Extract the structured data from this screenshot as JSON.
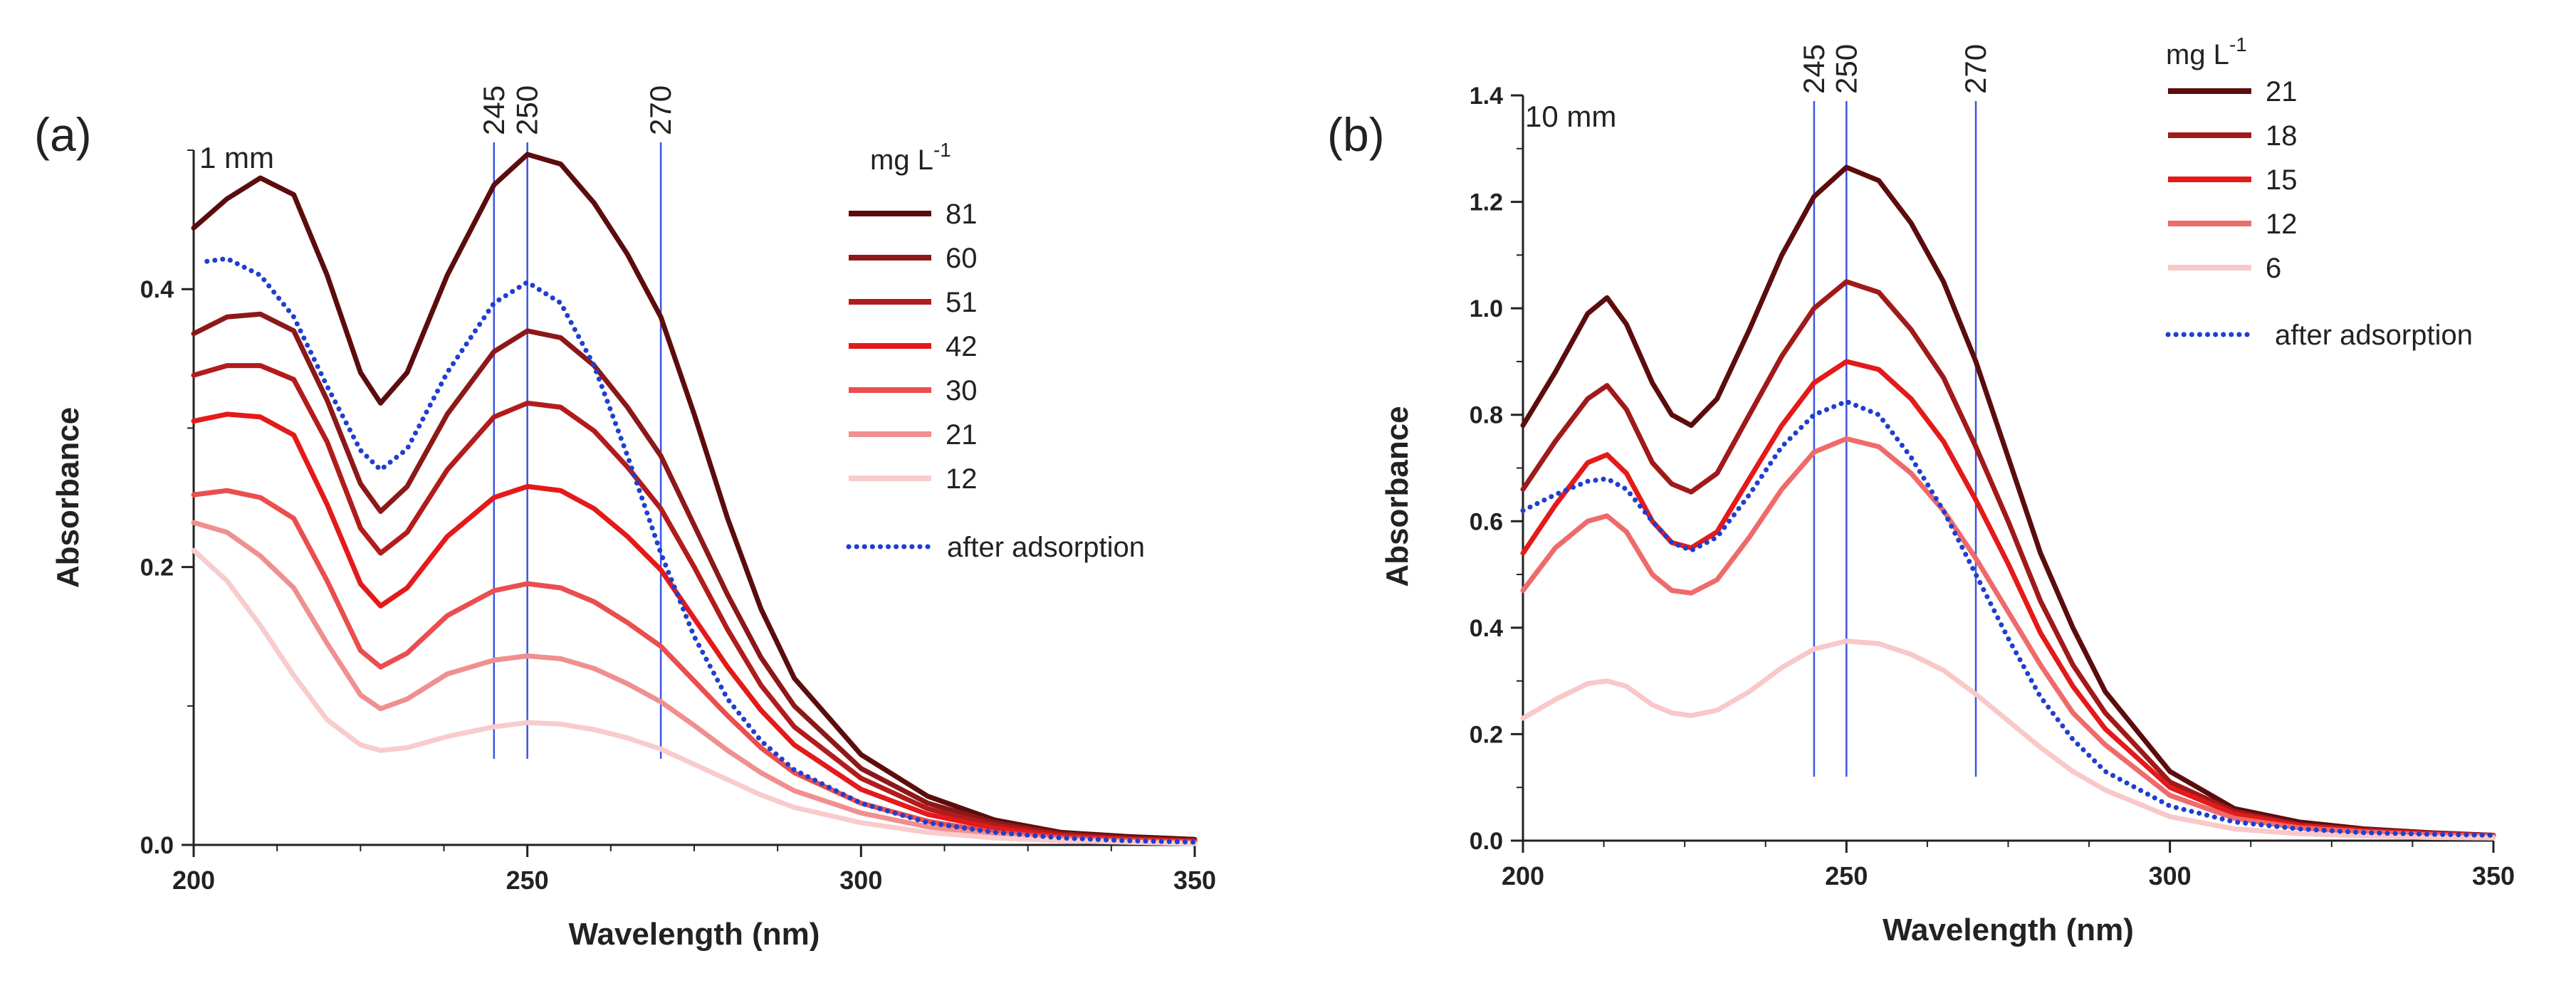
{
  "chart_data": [
    {
      "type": "line",
      "panel_label": "(a)",
      "path_note": "1 mm",
      "xlabel": "Wavelength (nm)",
      "ylabel": "Absorbance",
      "xlim": [
        200,
        350
      ],
      "ylim": [
        0,
        0.5
      ],
      "x_ticks": [
        200,
        250,
        300,
        350
      ],
      "y_ticks": [
        0.0,
        0.2,
        0.4
      ],
      "y_tick_labels": [
        "0.0",
        "0.2",
        "0.4"
      ],
      "x_minor_step": 12.5,
      "y_minor_step": 0.1,
      "ref_lines": [
        {
          "x": 245,
          "label": "245"
        },
        {
          "x": 250,
          "label": "250"
        },
        {
          "x": 270,
          "label": "270"
        }
      ],
      "ref_line_ymin": 0.062,
      "legend_title": "mg L",
      "legend_title_sup": "-1",
      "series": [
        {
          "name": "81",
          "color": "#5c0c0c",
          "style": "solid",
          "x": [
            200,
            205,
            210,
            215,
            220,
            225,
            228,
            232,
            238,
            245,
            250,
            255,
            260,
            265,
            270,
            275,
            280,
            285,
            290,
            300,
            310,
            320,
            330,
            340,
            350
          ],
          "y": [
            0.444,
            0.465,
            0.48,
            0.468,
            0.41,
            0.34,
            0.318,
            0.34,
            0.41,
            0.475,
            0.497,
            0.49,
            0.462,
            0.425,
            0.38,
            0.31,
            0.235,
            0.17,
            0.12,
            0.065,
            0.035,
            0.018,
            0.009,
            0.006,
            0.004
          ]
        },
        {
          "name": "60",
          "color": "#8c1818",
          "style": "solid",
          "x": [
            200,
            205,
            210,
            215,
            220,
            225,
            228,
            232,
            238,
            245,
            250,
            255,
            260,
            265,
            270,
            275,
            280,
            285,
            290,
            300,
            310,
            320,
            330,
            340,
            350
          ],
          "y": [
            0.368,
            0.38,
            0.382,
            0.37,
            0.32,
            0.26,
            0.24,
            0.258,
            0.31,
            0.355,
            0.37,
            0.365,
            0.345,
            0.315,
            0.28,
            0.23,
            0.18,
            0.135,
            0.1,
            0.055,
            0.03,
            0.016,
            0.008,
            0.005,
            0.003
          ]
        },
        {
          "name": "51",
          "color": "#b21c1c",
          "style": "solid",
          "x": [
            200,
            205,
            210,
            215,
            220,
            225,
            228,
            232,
            238,
            245,
            250,
            255,
            260,
            265,
            270,
            275,
            280,
            285,
            290,
            300,
            310,
            320,
            330,
            340,
            350
          ],
          "y": [
            0.338,
            0.345,
            0.345,
            0.335,
            0.29,
            0.228,
            0.21,
            0.225,
            0.27,
            0.308,
            0.318,
            0.315,
            0.298,
            0.272,
            0.242,
            0.2,
            0.155,
            0.115,
            0.085,
            0.048,
            0.026,
            0.014,
            0.007,
            0.004,
            0.003
          ]
        },
        {
          "name": "42",
          "color": "#e41a1a",
          "style": "solid",
          "x": [
            200,
            205,
            210,
            215,
            220,
            225,
            228,
            232,
            238,
            245,
            250,
            255,
            260,
            265,
            270,
            275,
            280,
            285,
            290,
            300,
            310,
            320,
            330,
            340,
            350
          ],
          "y": [
            0.305,
            0.31,
            0.308,
            0.295,
            0.245,
            0.188,
            0.172,
            0.185,
            0.222,
            0.25,
            0.258,
            0.255,
            0.242,
            0.222,
            0.198,
            0.163,
            0.128,
            0.097,
            0.072,
            0.04,
            0.022,
            0.012,
            0.006,
            0.004,
            0.002
          ]
        },
        {
          "name": "30",
          "color": "#ea4e4e",
          "style": "solid",
          "x": [
            200,
            205,
            210,
            215,
            220,
            225,
            228,
            232,
            238,
            245,
            250,
            255,
            260,
            265,
            270,
            275,
            280,
            285,
            290,
            300,
            310,
            320,
            330,
            340,
            350
          ],
          "y": [
            0.252,
            0.255,
            0.25,
            0.235,
            0.19,
            0.14,
            0.128,
            0.138,
            0.165,
            0.183,
            0.188,
            0.185,
            0.175,
            0.16,
            0.143,
            0.118,
            0.093,
            0.07,
            0.052,
            0.03,
            0.017,
            0.009,
            0.005,
            0.003,
            0.002
          ]
        },
        {
          "name": "21",
          "color": "#f08f8f",
          "style": "solid",
          "x": [
            200,
            205,
            210,
            215,
            220,
            225,
            228,
            232,
            238,
            245,
            250,
            255,
            260,
            265,
            270,
            275,
            280,
            285,
            290,
            300,
            310,
            320,
            330,
            340,
            350
          ],
          "y": [
            0.232,
            0.225,
            0.208,
            0.185,
            0.145,
            0.108,
            0.098,
            0.105,
            0.123,
            0.133,
            0.136,
            0.134,
            0.127,
            0.116,
            0.103,
            0.086,
            0.068,
            0.052,
            0.039,
            0.023,
            0.013,
            0.007,
            0.004,
            0.002,
            0.001
          ]
        },
        {
          "name": "12",
          "color": "#f8cccc",
          "style": "solid",
          "x": [
            200,
            205,
            210,
            215,
            220,
            225,
            228,
            232,
            238,
            245,
            250,
            255,
            260,
            265,
            270,
            275,
            280,
            285,
            290,
            300,
            310,
            320,
            330,
            340,
            350
          ],
          "y": [
            0.212,
            0.19,
            0.158,
            0.122,
            0.09,
            0.072,
            0.068,
            0.07,
            0.078,
            0.085,
            0.088,
            0.087,
            0.083,
            0.077,
            0.069,
            0.058,
            0.047,
            0.036,
            0.027,
            0.016,
            0.009,
            0.005,
            0.003,
            0.002,
            0.001
          ]
        },
        {
          "name": "after adsorption",
          "color": "#1f3fcf",
          "style": "dotted",
          "x": [
            202,
            205,
            210,
            215,
            220,
            225,
            228,
            232,
            238,
            245,
            250,
            255,
            260,
            265,
            270,
            275,
            280,
            285,
            290,
            300,
            310,
            320,
            330,
            340,
            350
          ],
          "y": [
            0.42,
            0.422,
            0.41,
            0.38,
            0.33,
            0.284,
            0.27,
            0.285,
            0.34,
            0.39,
            0.405,
            0.39,
            0.345,
            0.28,
            0.21,
            0.15,
            0.105,
            0.075,
            0.054,
            0.03,
            0.016,
            0.009,
            0.005,
            0.003,
            0.002
          ]
        }
      ]
    },
    {
      "type": "line",
      "panel_label": "(b)",
      "path_note": "10 mm",
      "xlabel": "Wavelength (nm)",
      "ylabel": "Absorbance",
      "xlim": [
        200,
        350
      ],
      "ylim": [
        0,
        1.4
      ],
      "x_ticks": [
        200,
        250,
        300,
        350
      ],
      "y_ticks": [
        0.0,
        0.2,
        0.4,
        0.6,
        0.8,
        1.0,
        1.2,
        1.4
      ],
      "y_tick_labels": [
        "0.0",
        "0.2",
        "0.4",
        "0.6",
        "0.8",
        "1.0",
        "1.2",
        "1.4"
      ],
      "x_minor_step": 12.5,
      "y_minor_step": 0.1,
      "ref_lines": [
        {
          "x": 245,
          "label": "245"
        },
        {
          "x": 250,
          "label": "250"
        },
        {
          "x": 270,
          "label": "270"
        }
      ],
      "ref_line_ymin": 0.12,
      "legend_title": "mg L",
      "legend_title_sup": "-1",
      "series": [
        {
          "name": "21",
          "color": "#5c0c0c",
          "style": "solid",
          "x": [
            200,
            205,
            210,
            213,
            216,
            220,
            223,
            226,
            230,
            235,
            240,
            245,
            250,
            255,
            260,
            265,
            270,
            275,
            280,
            285,
            290,
            300,
            310,
            320,
            330,
            340,
            350
          ],
          "y": [
            0.78,
            0.88,
            0.99,
            1.02,
            0.97,
            0.86,
            0.8,
            0.78,
            0.83,
            0.96,
            1.1,
            1.21,
            1.265,
            1.24,
            1.16,
            1.05,
            0.9,
            0.72,
            0.54,
            0.4,
            0.28,
            0.13,
            0.06,
            0.035,
            0.022,
            0.015,
            0.01
          ]
        },
        {
          "name": "18",
          "color": "#a01a1a",
          "style": "solid",
          "x": [
            200,
            205,
            210,
            213,
            216,
            220,
            223,
            226,
            230,
            235,
            240,
            245,
            250,
            255,
            260,
            265,
            270,
            275,
            280,
            285,
            290,
            300,
            310,
            320,
            330,
            340,
            350
          ],
          "y": [
            0.66,
            0.75,
            0.83,
            0.855,
            0.81,
            0.71,
            0.67,
            0.655,
            0.69,
            0.8,
            0.91,
            1.0,
            1.05,
            1.03,
            0.96,
            0.87,
            0.74,
            0.6,
            0.45,
            0.33,
            0.24,
            0.11,
            0.055,
            0.03,
            0.02,
            0.014,
            0.01
          ]
        },
        {
          "name": "15",
          "color": "#e41a1a",
          "style": "solid",
          "x": [
            200,
            205,
            210,
            213,
            216,
            220,
            223,
            226,
            230,
            235,
            240,
            245,
            250,
            255,
            260,
            265,
            270,
            275,
            280,
            285,
            290,
            300,
            310,
            320,
            330,
            340,
            350
          ],
          "y": [
            0.54,
            0.63,
            0.71,
            0.725,
            0.69,
            0.6,
            0.56,
            0.55,
            0.58,
            0.68,
            0.78,
            0.86,
            0.9,
            0.885,
            0.83,
            0.75,
            0.64,
            0.52,
            0.39,
            0.29,
            0.21,
            0.1,
            0.05,
            0.028,
            0.018,
            0.013,
            0.009
          ]
        },
        {
          "name": "12",
          "color": "#ef6a6a",
          "style": "solid",
          "x": [
            200,
            205,
            210,
            213,
            216,
            220,
            223,
            226,
            230,
            235,
            240,
            245,
            250,
            255,
            260,
            265,
            270,
            275,
            280,
            285,
            290,
            300,
            310,
            320,
            330,
            340,
            350
          ],
          "y": [
            0.47,
            0.55,
            0.6,
            0.61,
            0.58,
            0.5,
            0.47,
            0.465,
            0.49,
            0.57,
            0.66,
            0.73,
            0.755,
            0.74,
            0.69,
            0.62,
            0.53,
            0.43,
            0.33,
            0.24,
            0.18,
            0.085,
            0.042,
            0.024,
            0.016,
            0.011,
            0.008
          ]
        },
        {
          "name": "6",
          "color": "#f9c8c8",
          "style": "solid",
          "x": [
            200,
            205,
            210,
            213,
            216,
            220,
            223,
            226,
            230,
            235,
            240,
            245,
            250,
            255,
            260,
            265,
            270,
            275,
            280,
            285,
            290,
            300,
            310,
            320,
            330,
            340,
            350
          ],
          "y": [
            0.23,
            0.265,
            0.295,
            0.3,
            0.29,
            0.255,
            0.24,
            0.235,
            0.245,
            0.28,
            0.325,
            0.36,
            0.375,
            0.37,
            0.35,
            0.32,
            0.275,
            0.225,
            0.175,
            0.13,
            0.095,
            0.045,
            0.022,
            0.013,
            0.009,
            0.006,
            0.005
          ]
        },
        {
          "name": "after adsorption",
          "color": "#1f3fcf",
          "style": "dotted",
          "x": [
            200,
            205,
            210,
            213,
            216,
            220,
            223,
            226,
            230,
            235,
            240,
            245,
            250,
            255,
            260,
            265,
            270,
            275,
            280,
            285,
            290,
            300,
            310,
            320,
            330,
            340,
            350
          ],
          "y": [
            0.62,
            0.65,
            0.675,
            0.68,
            0.66,
            0.6,
            0.56,
            0.545,
            0.57,
            0.65,
            0.74,
            0.8,
            0.825,
            0.8,
            0.72,
            0.62,
            0.5,
            0.38,
            0.27,
            0.19,
            0.13,
            0.065,
            0.035,
            0.022,
            0.015,
            0.012,
            0.01
          ]
        }
      ]
    }
  ]
}
